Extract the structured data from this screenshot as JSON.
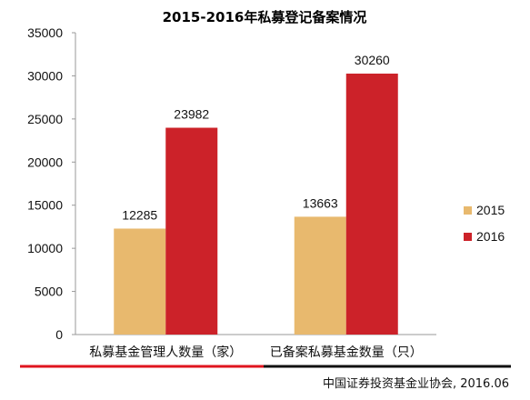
{
  "chart_data": {
    "type": "bar",
    "title": "2015-2016年私募登记备案情况",
    "categories": [
      "私募基金管理人数量（家）",
      "已备案私募基金数量（只）"
    ],
    "series": [
      {
        "name": "2015",
        "color": "#E8B96E",
        "values": [
          12285,
          13663
        ]
      },
      {
        "name": "2016",
        "color": "#CC2229",
        "values": [
          23982,
          30260
        ]
      }
    ],
    "ylim": [
      0,
      35000
    ],
    "yticks": [
      0,
      5000,
      10000,
      15000,
      20000,
      25000,
      30000,
      35000
    ],
    "xlabel": "",
    "ylabel": "",
    "grid": false,
    "legend_position": "right",
    "data_labels": true
  },
  "source": "中国证券投资基金业协会, 2016.06",
  "colors": {
    "divider_left": "#E0141E",
    "divider_right": "#111111"
  }
}
